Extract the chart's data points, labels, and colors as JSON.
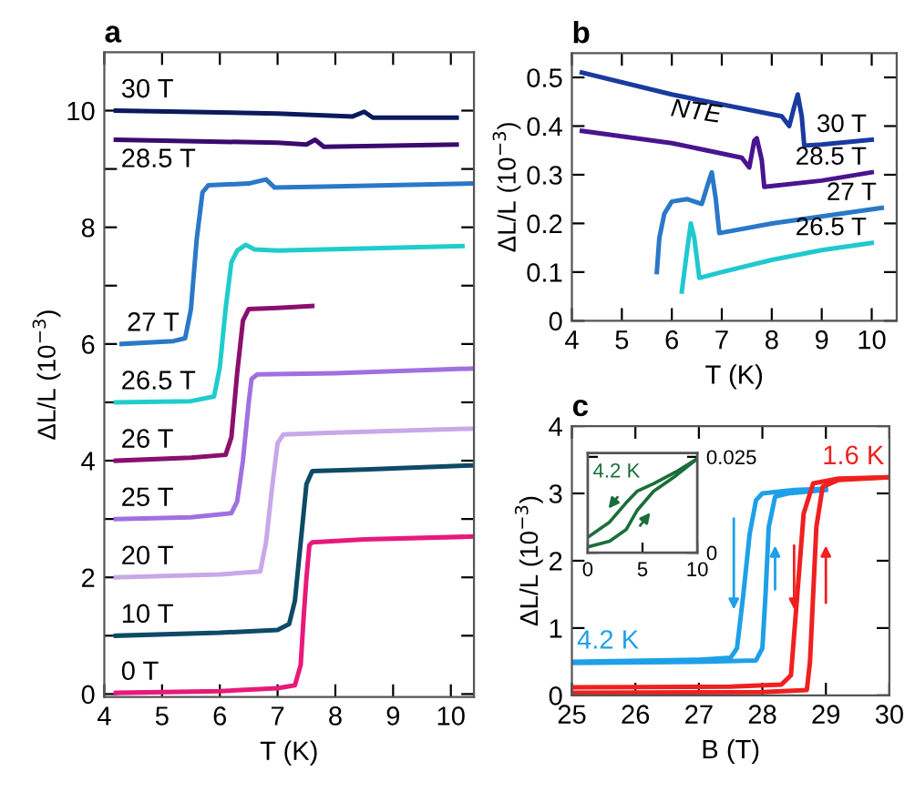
{
  "chart_data": [
    {
      "type": "line",
      "title": "a",
      "xlabel": "T (K)",
      "ylabel": "ΔL/L (10$^{−3}$)",
      "xlim": [
        4,
        10.4
      ],
      "ylim": [
        -0.05,
        11
      ],
      "xticks": [
        4,
        5,
        6,
        7,
        8,
        9,
        10
      ],
      "yticks": [
        0,
        {
          "value": 1,
          "label": null
        },
        2,
        {
          "value": 3,
          "label": null
        },
        4,
        {
          "value": 5,
          "label": null
        },
        6,
        {
          "value": 7,
          "label": null
        },
        8,
        {
          "value": 9,
          "label": null
        },
        10
      ],
      "grid": false,
      "legend": false,
      "marker": "none",
      "line_style": "solid",
      "series": [
        {
          "name": "0 T",
          "color": "#e8197a",
          "x": [
            4.2,
            6,
            7,
            7.3,
            7.4,
            7.45,
            7.5,
            7.55,
            7.6,
            8.5,
            10.4
          ],
          "values": [
            0.02,
            0.05,
            0.1,
            0.15,
            0.5,
            1.3,
            2,
            2.55,
            2.6,
            2.65,
            2.7
          ]
        },
        {
          "name": "10 T",
          "color": "#0d4a66",
          "x": [
            4.2,
            6,
            7,
            7.2,
            7.3,
            7.4,
            7.5,
            7.6,
            8.5,
            10.4
          ],
          "values": [
            1.0,
            1.05,
            1.1,
            1.2,
            1.6,
            2.6,
            3.6,
            3.82,
            3.85,
            3.92
          ]
        },
        {
          "name": "20 T",
          "color": "#c8a8e8",
          "x": [
            4.2,
            6,
            6.7,
            6.8,
            6.9,
            7.0,
            7.1,
            8,
            10.4
          ],
          "values": [
            2.0,
            2.05,
            2.1,
            2.6,
            3.5,
            4.3,
            4.45,
            4.48,
            4.55
          ]
        },
        {
          "name": "25 T",
          "color": "#a070e0",
          "x": [
            4.2,
            5.5,
            6.2,
            6.3,
            6.4,
            6.5,
            6.55,
            6.65,
            8,
            10.4
          ],
          "values": [
            3.0,
            3.03,
            3.1,
            3.3,
            4.0,
            5.0,
            5.4,
            5.48,
            5.5,
            5.58
          ]
        },
        {
          "name": "26 T",
          "color": "#8b0f6e",
          "x": [
            4.2,
            5.5,
            6.1,
            6.2,
            6.3,
            6.4,
            6.5,
            7.0,
            7.6
          ],
          "values": [
            4.0,
            4.05,
            4.1,
            4.4,
            5.5,
            6.4,
            6.6,
            6.62,
            6.65
          ]
        },
        {
          "name": "26.5 T",
          "color": "#20cccc",
          "x": [
            4.2,
            5.5,
            5.9,
            6.0,
            6.1,
            6.2,
            6.3,
            6.45,
            6.6,
            7,
            10.2
          ],
          "values": [
            5.0,
            5.02,
            5.1,
            5.6,
            6.6,
            7.4,
            7.6,
            7.7,
            7.62,
            7.6,
            7.68
          ]
        },
        {
          "name": "27 T",
          "color": "#2a78c8",
          "x": [
            4.3,
            5.2,
            5.4,
            5.5,
            5.6,
            5.7,
            5.8,
            6.5,
            6.8,
            6.95,
            8,
            10.4
          ],
          "values": [
            6.0,
            6.05,
            6.1,
            6.6,
            7.8,
            8.6,
            8.72,
            8.75,
            8.82,
            8.68,
            8.7,
            8.75
          ]
        },
        {
          "name": "28.5 T",
          "color": "#3a0a6e",
          "x": [
            4.2,
            7,
            7.5,
            7.65,
            7.8,
            10.1
          ],
          "values": [
            9.5,
            9.45,
            9.42,
            9.5,
            9.38,
            9.42
          ]
        },
        {
          "name": "30 T",
          "color": "#0a1a5e",
          "x": [
            4.2,
            7,
            8.3,
            8.5,
            8.65,
            10.1
          ],
          "values": [
            10.0,
            9.95,
            9.9,
            9.98,
            9.88,
            9.88
          ]
        }
      ]
    },
    {
      "type": "line",
      "title": "b",
      "xlabel": "T (K)",
      "ylabel": "ΔL/L (10$^{−3}$)",
      "xlim": [
        4,
        10.5
      ],
      "ylim": [
        0,
        0.55
      ],
      "xticks": [
        4,
        5,
        6,
        7,
        8,
        9,
        10
      ],
      "yticks": [
        0,
        0.1,
        0.2,
        0.3,
        0.4,
        0.5
      ],
      "grid": false,
      "legend": false,
      "marker": "none",
      "line_style": "solid",
      "series": [
        {
          "name": "30 T",
          "color": "#1a3aa0",
          "x": [
            4.2,
            6,
            8.2,
            8.35,
            8.45,
            8.52,
            8.6,
            8.65,
            9,
            10
          ],
          "values": [
            0.51,
            0.465,
            0.42,
            0.4,
            0.44,
            0.465,
            0.42,
            0.36,
            0.362,
            0.372
          ]
        },
        {
          "name": "28.5 T",
          "color": "#4a1490",
          "x": [
            4.2,
            6,
            7.4,
            7.55,
            7.65,
            7.7,
            7.8,
            7.85,
            9,
            10
          ],
          "values": [
            0.39,
            0.365,
            0.335,
            0.315,
            0.37,
            0.375,
            0.33,
            0.275,
            0.288,
            0.305
          ]
        },
        {
          "name": "27 T",
          "color": "#2a78c8",
          "x": [
            5.7,
            5.75,
            5.85,
            6,
            6.3,
            6.6,
            6.75,
            6.8,
            6.88,
            6.95,
            8,
            10.2
          ],
          "values": [
            0.1,
            0.17,
            0.22,
            0.245,
            0.25,
            0.24,
            0.29,
            0.305,
            0.25,
            0.18,
            0.2,
            0.232
          ]
        },
        {
          "name": "26.5 T",
          "color": "#20c8d0",
          "x": [
            6.2,
            6.3,
            6.38,
            6.45,
            6.55,
            7,
            8,
            9,
            10
          ],
          "values": [
            0.06,
            0.14,
            0.2,
            0.17,
            0.088,
            0.1,
            0.125,
            0.145,
            0.16
          ]
        }
      ],
      "annotations": [
        "NTE"
      ]
    },
    {
      "type": "line",
      "title": "c",
      "xlabel": "B (T)",
      "ylabel": "ΔL/L (10$^{−3}$)",
      "xlim": [
        25,
        30
      ],
      "ylim": [
        0,
        4
      ],
      "xticks": [
        25,
        26,
        27,
        28,
        29,
        30
      ],
      "yticks": [
        0,
        1,
        2,
        3,
        4
      ],
      "grid": false,
      "legend": false,
      "marker": "none",
      "line_style": "solid",
      "series": [
        {
          "name": "4.2 K",
          "color": "#1ea0e8",
          "x": [
            25,
            27,
            27.5,
            27.6,
            27.7,
            27.8,
            27.9,
            28.0,
            28.5,
            29
          ],
          "values": [
            0.5,
            0.53,
            0.56,
            0.7,
            1.5,
            2.4,
            2.9,
            3.0,
            3.05,
            3.07
          ]
        },
        {
          "color": "#1ea0e8",
          "x": [
            25,
            27,
            27.9,
            28.0,
            28.05,
            28.1,
            28.2,
            28.4,
            29
          ],
          "values": [
            0.48,
            0.5,
            0.52,
            0.7,
            1.5,
            2.5,
            2.95,
            3.0,
            3.05
          ]
        },
        {
          "name": "1.6 K",
          "color": "#f02020",
          "x": [
            25,
            27.5,
            28.3,
            28.45,
            28.55,
            28.65,
            28.8,
            29.2,
            30
          ],
          "values": [
            0.12,
            0.13,
            0.16,
            0.3,
            1.5,
            2.7,
            3.15,
            3.22,
            3.24
          ]
        },
        {
          "color": "#f02020",
          "x": [
            25,
            28,
            28.7,
            28.75,
            28.8,
            28.85,
            28.95,
            29.2,
            30
          ],
          "values": [
            0.04,
            0.05,
            0.08,
            0.5,
            1.5,
            2.5,
            3.1,
            3.2,
            3.24
          ]
        }
      ]
    },
    {
      "type": "line",
      "xlim": [
        0,
        10
      ],
      "ylim": [
        0,
        0.026
      ],
      "xticks": [
        0,
        5,
        10
      ],
      "yticks": [
        0,
        0.025
      ],
      "grid": false,
      "legend": false,
      "marker": "none",
      "line_style": "solid",
      "series": [
        {
          "name": "4.2 K",
          "color": "#1a6e3a",
          "x": [
            0,
            2,
            3.5,
            4.5,
            6,
            8,
            10
          ],
          "values": [
            0.004,
            0.008,
            0.013,
            0.016,
            0.018,
            0.021,
            0.0245
          ]
        },
        {
          "color": "#1a6e3a",
          "x": [
            0,
            2,
            3.5,
            4.5,
            6,
            8,
            10
          ],
          "values": [
            0.0015,
            0.003,
            0.006,
            0.011,
            0.016,
            0.02,
            0.0245
          ]
        }
      ]
    }
  ]
}
